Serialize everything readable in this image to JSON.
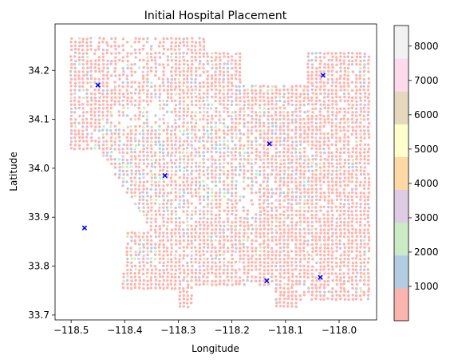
{
  "chart_data": {
    "type": "scatter",
    "title": "Initial Hospital Placement",
    "xlabel": "Longitude",
    "ylabel": "Latitude",
    "xlim": [
      -118.53,
      -117.93
    ],
    "ylim": [
      33.69,
      34.295
    ],
    "xticks": [
      -118.5,
      -118.4,
      -118.3,
      -118.2,
      -118.1,
      -118.0
    ],
    "xtick_labels": [
      "−118.5",
      "−118.4",
      "−118.3",
      "−118.2",
      "−118.1",
      "−118.0"
    ],
    "yticks": [
      33.7,
      33.8,
      33.9,
      34.0,
      34.1,
      34.2
    ],
    "ytick_labels": [
      "33.7",
      "33.8",
      "33.9",
      "34.0",
      "34.1",
      "34.2"
    ],
    "grid": false,
    "colorbar": {
      "range": [
        0,
        8600
      ],
      "ticks": [
        1000,
        2000,
        3000,
        4000,
        5000,
        6000,
        7000,
        8000
      ],
      "tick_labels": [
        "1000",
        "2000",
        "3000",
        "4000",
        "5000",
        "6000",
        "7000",
        "8000"
      ],
      "colors": [
        "#fbb4ae",
        "#b3cde3",
        "#ccebc5",
        "#decbe4",
        "#fed9a6",
        "#ffffcc",
        "#e5d8bd",
        "#fddaec",
        "#f2f2f2"
      ],
      "colormap": "Pastel1"
    },
    "series": [
      {
        "marker": "x",
        "color": "#0000ff",
        "points": [
          {
            "x": -118.45,
            "y": 34.17
          },
          {
            "x": -118.03,
            "y": 34.19
          },
          {
            "x": -118.13,
            "y": 34.05
          },
          {
            "x": -118.325,
            "y": 33.985
          },
          {
            "x": -118.475,
            "y": 33.878
          },
          {
            "x": -118.135,
            "y": 33.77
          },
          {
            "x": -118.035,
            "y": 33.777
          }
        ]
      }
    ],
    "background_points": "dense grid of census-tract points across the Los Angeles area, colored mostly in the lowest colormap band (pink) with scattered blue, green, purple and yellow points in the central region"
  }
}
